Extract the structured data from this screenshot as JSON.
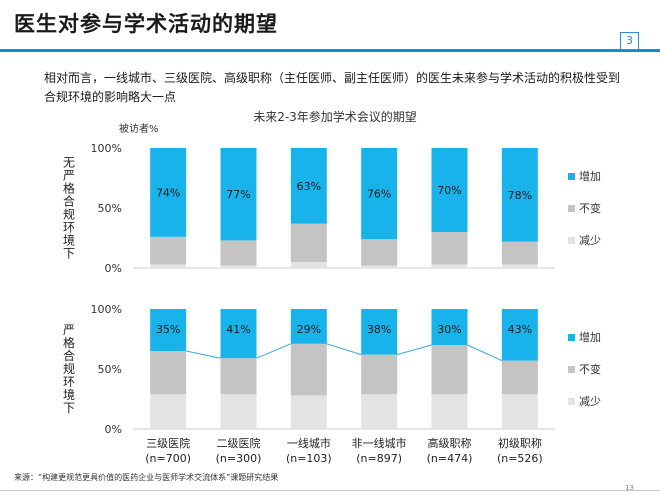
{
  "slide": {
    "title": "医生对参与学术活动的期望",
    "page_badge": "3",
    "intro": "相对而言，一线城市、三级医院、高级职称（主任医师、副主任医师）的医生未来参与学术活动的积极性受到合规环境的影响略大一点",
    "source_note": "来源：“构建更规范更具价值的医药企业与医师学术交流体系”课题研究结果",
    "page_number": "13"
  },
  "chart_data": {
    "type": "bar",
    "stacked": true,
    "title": "未来2-3年参加学术会议的期望",
    "ylabel": "被访者%",
    "ylim": [
      0,
      100
    ],
    "yticks": [
      "0%",
      "50%",
      "100%"
    ],
    "categories": [
      "三级医院\n(n=700)",
      "二级医院\n(n=300)",
      "一线城市\n(n=103)",
      "非一线城市\n(n=897)",
      "高级职称\n(n=474)",
      "初级职称\n(n=526)"
    ],
    "legend": [
      "增加",
      "不变",
      "减少"
    ],
    "colors": {
      "increase": "#17b3ea",
      "same": "#c4c4c4",
      "decrease": "#e3e3e3",
      "connector": "#36a9dc"
    },
    "panels": [
      {
        "name": "无严格合规环境下",
        "series": [
          {
            "name": "增加",
            "values": [
              74,
              77,
              63,
              76,
              70,
              78
            ]
          },
          {
            "name": "不变",
            "values": [
              23,
              21,
              32,
              22,
              27,
              19
            ]
          },
          {
            "name": "减少",
            "values": [
              3,
              2,
              5,
              2,
              3,
              3
            ]
          }
        ],
        "labels": [
          "74%",
          "77%",
          "63%",
          "76%",
          "70%",
          "78%"
        ]
      },
      {
        "name": "严格合规环境下",
        "series": [
          {
            "name": "增加",
            "values": [
              35,
              41,
              29,
              38,
              30,
              43
            ]
          },
          {
            "name": "不变",
            "values": [
              36,
              30,
              43,
              33,
              41,
              28
            ]
          },
          {
            "name": "减少",
            "values": [
              29,
              29,
              28,
              29,
              29,
              29
            ]
          }
        ],
        "labels": [
          "35%",
          "41%",
          "29%",
          "38%",
          "30%",
          "43%"
        ]
      }
    ]
  }
}
